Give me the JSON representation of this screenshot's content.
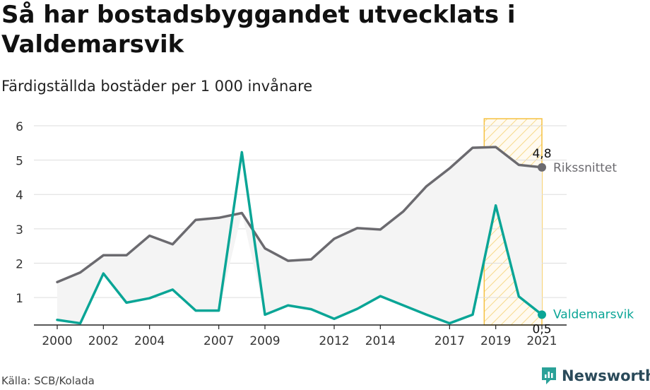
{
  "title": "Så har bostadsbyggandet utvecklats i Valdemarsvik",
  "subtitle": "Färdigställda bostäder per 1 000 invånare",
  "source": "Källa: SCB/Kolada",
  "brand": {
    "name": "Newsworthy"
  },
  "colors": {
    "rikssnittet": "#6b6a6f",
    "valdemarsvik": "#0aa596",
    "highlight": "#f5c242",
    "area": "#f4f4f4",
    "grid": "#dddddd"
  },
  "chart_data": {
    "type": "line",
    "x": [
      2000,
      2001,
      2002,
      2003,
      2004,
      2005,
      2006,
      2007,
      2008,
      2009,
      2010,
      2011,
      2012,
      2013,
      2014,
      2015,
      2016,
      2017,
      2018,
      2019,
      2020,
      2021
    ],
    "ylim": [
      0.2,
      6
    ],
    "yticks": [
      1,
      2,
      3,
      4,
      5,
      6
    ],
    "xticks": [
      2000,
      2002,
      2004,
      2007,
      2009,
      2012,
      2014,
      2017,
      2019,
      2021
    ],
    "grid": true,
    "highlight_range": [
      2018.5,
      2021
    ],
    "series": [
      {
        "name": "Rikssnittet",
        "values": [
          1.45,
          1.73,
          2.23,
          2.23,
          2.8,
          2.55,
          3.26,
          3.32,
          3.46,
          2.43,
          2.07,
          2.11,
          2.71,
          3.02,
          2.98,
          3.51,
          4.24,
          4.76,
          5.36,
          5.38,
          4.86,
          4.79
        ],
        "end_label": "4,8"
      },
      {
        "name": "Valdemarsvik",
        "values": [
          0.35,
          0.25,
          1.7,
          0.85,
          0.98,
          1.23,
          0.62,
          0.62,
          5.23,
          0.5,
          0.77,
          0.66,
          0.38,
          0.67,
          1.04,
          0.77,
          0.5,
          0.25,
          0.5,
          3.68,
          1.03,
          0.5
        ],
        "end_label": "0,5"
      }
    ]
  }
}
